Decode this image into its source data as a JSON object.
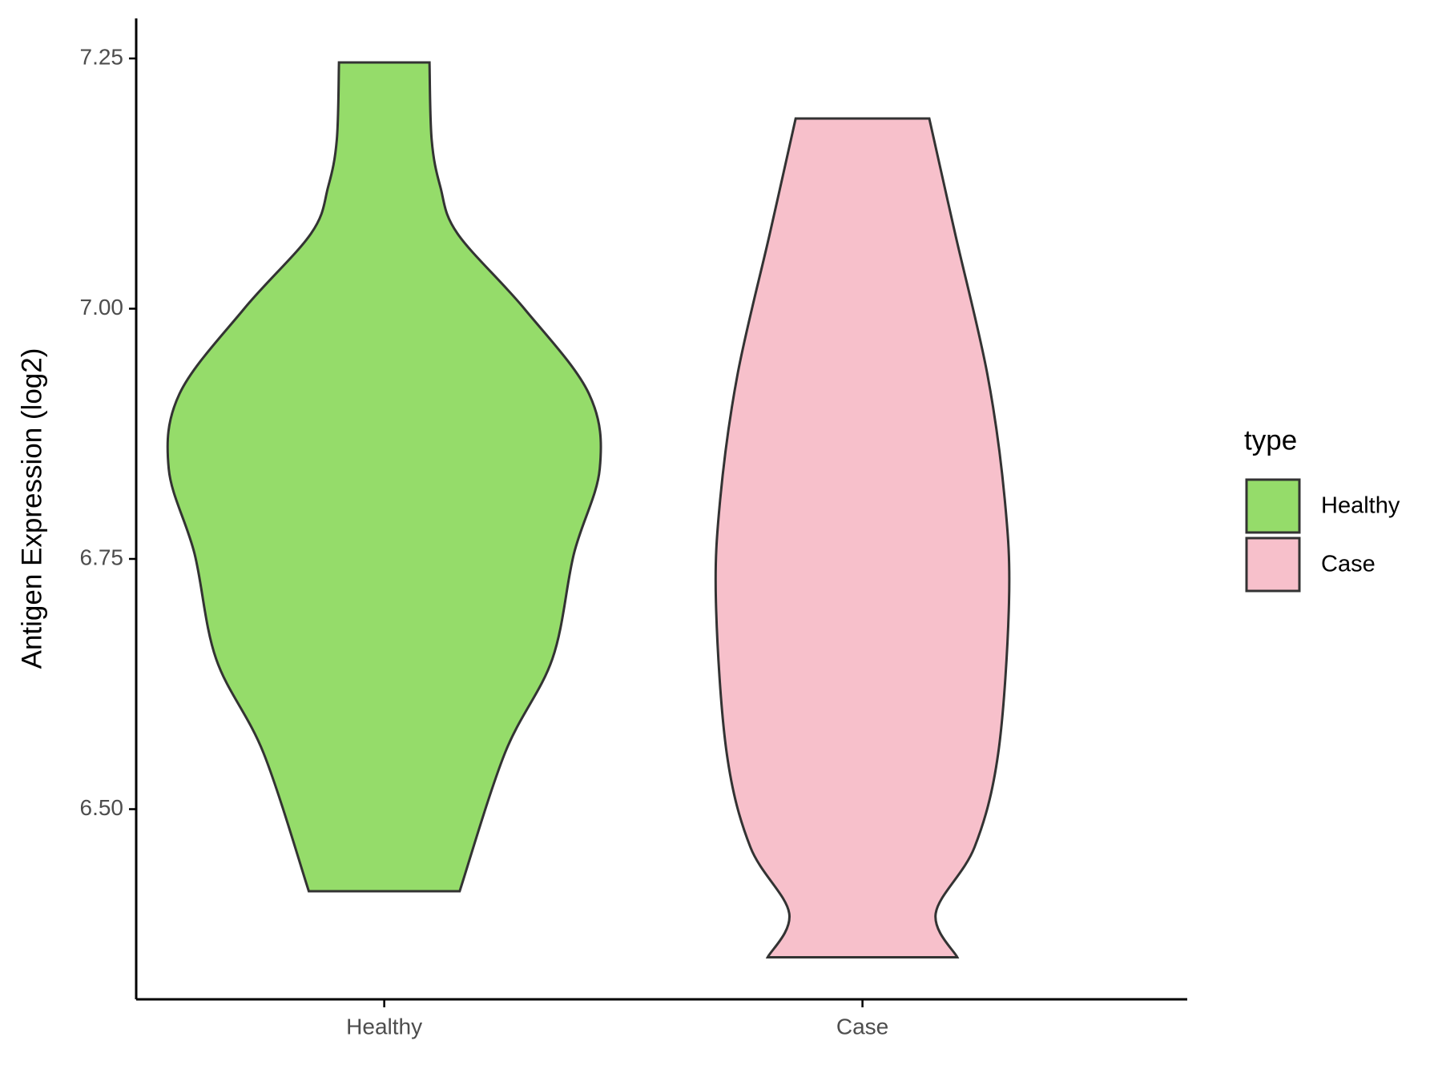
{
  "chart_data": {
    "type": "violin",
    "y_label": "Antigen Expression (log2)",
    "categories": [
      "Healthy",
      "Case"
    ],
    "legend_title": "type",
    "legend_position": "right",
    "ylim": [
      6.31,
      7.29
    ],
    "yticks": [
      {
        "value": 6.5,
        "label": "6.50"
      },
      6.75,
      {
        "value": 7.0,
        "label": "7.00"
      },
      7.25
    ],
    "series": [
      {
        "name": "Healthy",
        "color": "#95dc6a",
        "y": [
          7.246,
          7.169,
          7.122,
          7.075,
          7.0,
          6.915,
          6.84,
          6.755,
          6.65,
          6.556,
          6.418
        ],
        "density": [
          0.21,
          0.22,
          0.26,
          0.34,
          0.65,
          0.95,
          1.0,
          0.88,
          0.78,
          0.56,
          0.35
        ]
      },
      {
        "name": "Case",
        "color": "#f7c0cb",
        "y": [
          7.19,
          7.075,
          6.934,
          6.81,
          6.707,
          6.556,
          6.462,
          6.396,
          6.352
        ],
        "density": [
          0.31,
          0.43,
          0.58,
          0.66,
          0.68,
          0.63,
          0.52,
          0.34,
          0.44
        ]
      }
    ]
  }
}
